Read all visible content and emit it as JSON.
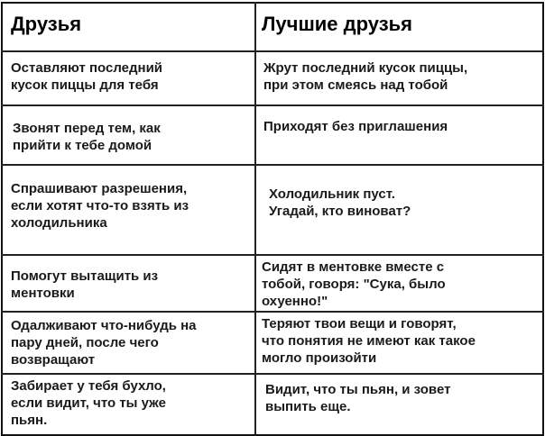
{
  "header": {
    "friends": "Друзья",
    "best_friends": "Лучшие друзья"
  },
  "rows": [
    {
      "friends": "Оставляют последний\nкусок пиццы для тебя",
      "best_friends": "Жрут последний кусок пиццы,\nпри этом смеясь над тобой"
    },
    {
      "friends": "Звонят перед тем, как\nприйти к тебе домой",
      "best_friends": "Приходят без приглашения"
    },
    {
      "friends": "Спрашивают разрешения,\nесли хотят что-то взять из\nхолодильника",
      "best_friends": "Холодильник пуст.\nУгадай, кто виноват?"
    },
    {
      "friends": "Помогут вытащить из\nментовки",
      "best_friends": "Сидят в ментовке вместе с\nтобой, говоря: \"Сука, было\nохуенно!\""
    },
    {
      "friends": "Одалживают что-нибудь на\nпару дней, после чего\nвозвращают",
      "best_friends": "Теряют твои вещи и говорят,\nчто понятия не имеют как такое\nмогло произойти"
    },
    {
      "friends": "Забирает у тебя бухло,\nесли видит, что ты уже\nпьян.",
      "best_friends": "Видит, что ты пьян, и зовет\nвыпить еще."
    }
  ]
}
